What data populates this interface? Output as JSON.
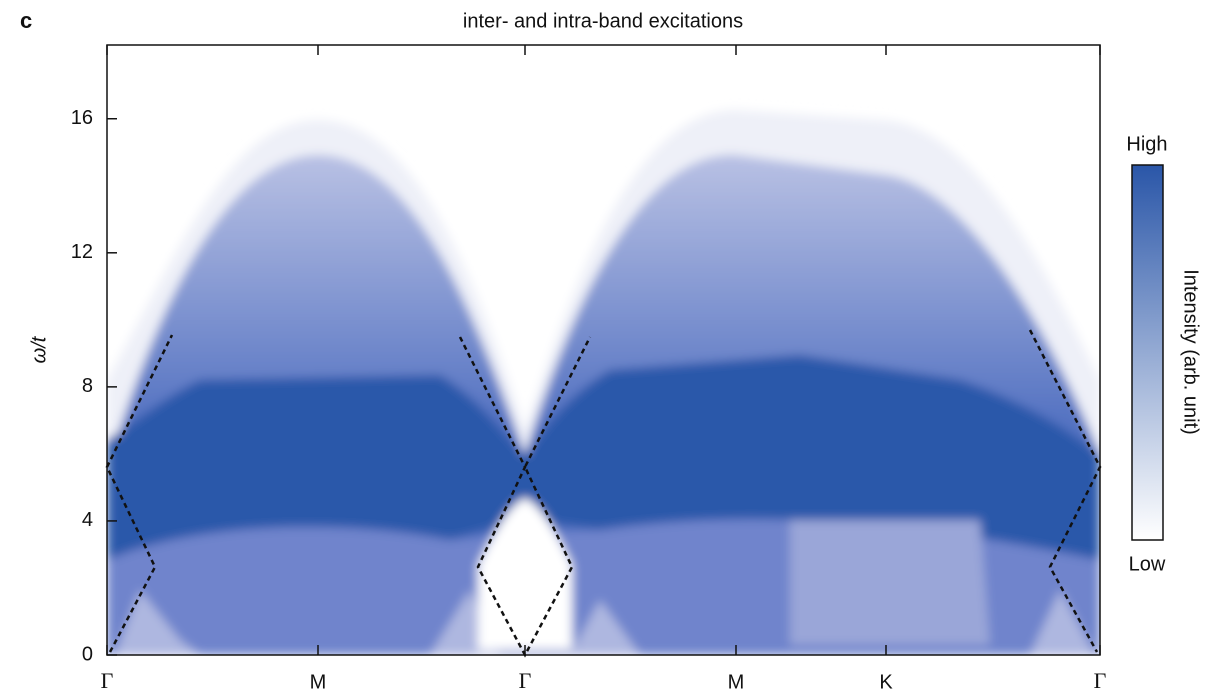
{
  "chart_data": {
    "type": "heatmap",
    "panel_label": "c",
    "title": "inter- and intra-band excitations",
    "ylabel": "ω/t",
    "categories": [
      "Γ",
      "M",
      "Γ",
      "M",
      "K",
      "Γ"
    ],
    "ylim": [
      0,
      18.2
    ],
    "yticks": [
      0,
      4,
      8,
      12,
      16
    ],
    "colorbar": {
      "label": "Intensity (arb. unit)",
      "high": "High",
      "low": "Low",
      "colors": [
        "#ffffff",
        "#2a56a8"
      ]
    }
  }
}
